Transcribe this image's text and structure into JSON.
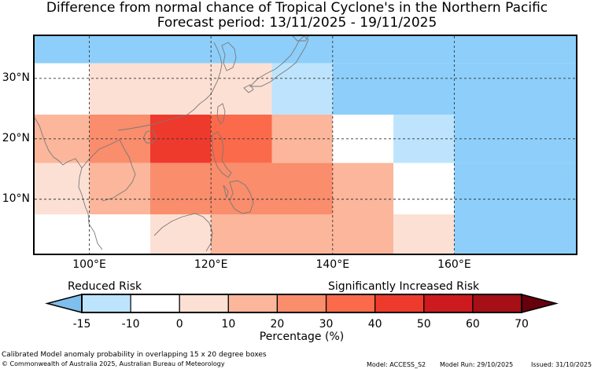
{
  "title": {
    "line1": "Difference from normal chance of Tropical Cyclone's in the Northern Pacific",
    "line2": "Forecast period: 13/11/2025 - 19/11/2025"
  },
  "map": {
    "lon_range": [
      91,
      180
    ],
    "lat_range": [
      1,
      37
    ],
    "lat_labels": [
      {
        "value": 30,
        "text": "30°N"
      },
      {
        "value": 20,
        "text": "20°N"
      },
      {
        "value": 10,
        "text": "10°N"
      }
    ],
    "lon_labels": [
      {
        "value": 100,
        "text": "100°E"
      },
      {
        "value": 120,
        "text": "120°E"
      },
      {
        "value": 140,
        "text": "140°E"
      },
      {
        "value": 160,
        "text": "160°E"
      }
    ],
    "grid_note": "Calibrated Model anomaly probability in overlapping 15 x 20 degree boxes",
    "cells": [
      {
        "lon0": 91,
        "lon1": 180,
        "lat0": 32.5,
        "lat1": 37,
        "c": "#8dcffa"
      },
      {
        "lon0": 91,
        "lon1": 100,
        "lat0": 24,
        "lat1": 32.5,
        "c": "#ffffff"
      },
      {
        "lon0": 100,
        "lon1": 130,
        "lat0": 24,
        "lat1": 32.5,
        "c": "#fde0d4"
      },
      {
        "lon0": 130,
        "lon1": 140,
        "lat0": 24,
        "lat1": 32.5,
        "c": "#bde4fc"
      },
      {
        "lon0": 140,
        "lon1": 180,
        "lat0": 24,
        "lat1": 32.5,
        "c": "#8dcffa"
      },
      {
        "lon0": 91,
        "lon1": 100,
        "lat0": 16,
        "lat1": 24,
        "c": "#fbb69b"
      },
      {
        "lon0": 100,
        "lon1": 110,
        "lat0": 16,
        "lat1": 24,
        "c": "#f98d6c"
      },
      {
        "lon0": 110,
        "lon1": 120,
        "lat0": 16,
        "lat1": 24,
        "c": "#ee3a2c"
      },
      {
        "lon0": 120,
        "lon1": 130,
        "lat0": 16,
        "lat1": 24,
        "c": "#fb6a4a"
      },
      {
        "lon0": 130,
        "lon1": 140,
        "lat0": 16,
        "lat1": 24,
        "c": "#fbb69b"
      },
      {
        "lon0": 140,
        "lon1": 150,
        "lat0": 16,
        "lat1": 24,
        "c": "#ffffff"
      },
      {
        "lon0": 150,
        "lon1": 160,
        "lat0": 16,
        "lat1": 24,
        "c": "#bde4fc"
      },
      {
        "lon0": 160,
        "lon1": 180,
        "lat0": 16,
        "lat1": 24,
        "c": "#8dcffa"
      },
      {
        "lon0": 91,
        "lon1": 100,
        "lat0": 7.5,
        "lat1": 16,
        "c": "#fde0d4"
      },
      {
        "lon0": 100,
        "lon1": 110,
        "lat0": 7.5,
        "lat1": 16,
        "c": "#fbb69b"
      },
      {
        "lon0": 110,
        "lon1": 140,
        "lat0": 7.5,
        "lat1": 16,
        "c": "#f98d6c"
      },
      {
        "lon0": 140,
        "lon1": 150,
        "lat0": 7.5,
        "lat1": 16,
        "c": "#fbb69b"
      },
      {
        "lon0": 150,
        "lon1": 160,
        "lat0": 7.5,
        "lat1": 16,
        "c": "#ffffff"
      },
      {
        "lon0": 160,
        "lon1": 180,
        "lat0": 7.5,
        "lat1": 16,
        "c": "#8dcffa"
      },
      {
        "lon0": 91,
        "lon1": 110,
        "lat0": 1,
        "lat1": 7.5,
        "c": "#ffffff"
      },
      {
        "lon0": 110,
        "lon1": 120,
        "lat0": 1,
        "lat1": 7.5,
        "c": "#fde0d4"
      },
      {
        "lon0": 120,
        "lon1": 150,
        "lat0": 1,
        "lat1": 7.5,
        "c": "#fbb69b"
      },
      {
        "lon0": 150,
        "lon1": 160,
        "lat0": 1,
        "lat1": 7.5,
        "c": "#fde0d4"
      },
      {
        "lon0": 160,
        "lon1": 180,
        "lat0": 1,
        "lat1": 7.5,
        "c": "#8dcffa"
      }
    ]
  },
  "colorbar": {
    "reduced_label": "Reduced Risk",
    "increased_label": "Significantly Increased Risk",
    "axis_label": "Percentage (%)",
    "ticks": [
      "-15",
      "-10",
      "0",
      "10",
      "20",
      "30",
      "40",
      "50",
      "60",
      "70"
    ],
    "under_color": "#7fbfed",
    "over_color": "#67000d",
    "colors": [
      "#bde4fc",
      "#ffffff",
      "#fde0d4",
      "#fbb69b",
      "#f98d6c",
      "#fb6a4a",
      "#ee3a2c",
      "#cc1a1e",
      "#a50f15"
    ]
  },
  "footer": {
    "note": "Calibrated Model anomaly probability in overlapping 15 x 20 degree boxes",
    "copyright": "© Commonwealth of Australia 2025, Australian Bureau of Meteorology",
    "model": "Model: ACCESS_S2",
    "model_run": "Model Run: 29/10/2025",
    "issued": "Issued: 31/10/2025"
  }
}
